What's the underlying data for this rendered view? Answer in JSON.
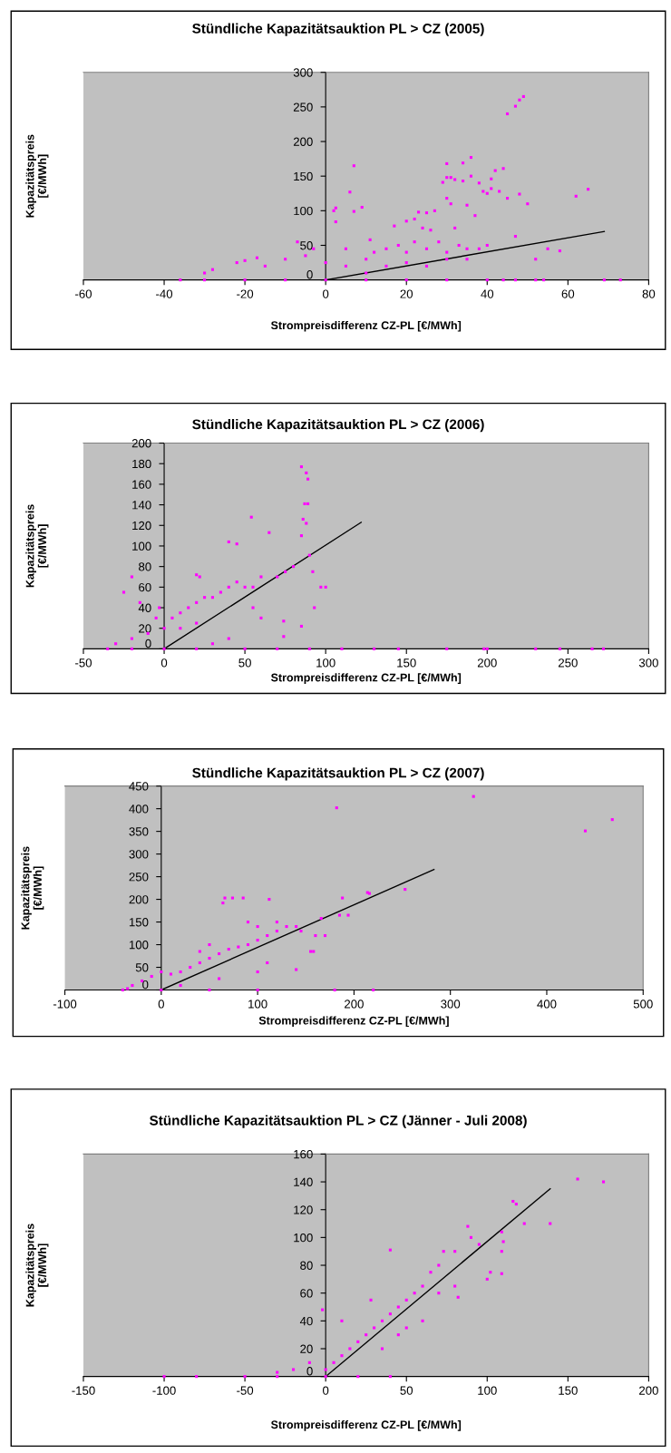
{
  "chart_data": [
    {
      "type": "scatter",
      "title": "Stündliche Kapazitätsauktion PL > CZ (2005)",
      "xlabel": "Strompreisdifferenz CZ-PL [€/MWh]",
      "ylabel": "Kapazitätspreis\n[€/MWh]",
      "xlim": [
        -60,
        80
      ],
      "ylim": [
        0,
        300
      ],
      "xticks": [
        -60,
        -40,
        -20,
        0,
        20,
        40,
        60,
        80
      ],
      "yticks": [
        0,
        50,
        100,
        150,
        200,
        250,
        300
      ],
      "grid": false,
      "series": [
        {
          "marker": "square",
          "color": "#ff00ff",
          "x": [
            2,
            2.5,
            2.5,
            6,
            7,
            7,
            9,
            30,
            29,
            30,
            31,
            32,
            30,
            31,
            34,
            36,
            36,
            34,
            35,
            37,
            38,
            39,
            40,
            41,
            41,
            42,
            43,
            44,
            45,
            47,
            48,
            49,
            45,
            48,
            50,
            62,
            65,
            58,
            55,
            52,
            47,
            32,
            17,
            20,
            22,
            23,
            25,
            27,
            26,
            24,
            5,
            10,
            12,
            15,
            18,
            20,
            22,
            25,
            28,
            30,
            33,
            35,
            38,
            40,
            10,
            15,
            20,
            25,
            30,
            35,
            -10,
            -20,
            -17,
            -22,
            -28,
            -30,
            -15,
            -5,
            -3,
            -7,
            0,
            5,
            11,
            -36,
            -30,
            -20,
            -10,
            0,
            10,
            20,
            30,
            40,
            44,
            47,
            52,
            54,
            69,
            73
          ],
          "values": [
            100,
            104,
            84,
            127,
            165,
            99,
            105,
            168,
            141,
            148,
            148,
            145,
            118,
            110,
            169,
            177,
            150,
            143,
            108,
            93,
            140,
            128,
            125,
            146,
            132,
            158,
            128,
            161,
            240,
            251,
            260,
            265,
            118,
            124,
            110,
            121,
            131,
            42,
            45,
            30,
            63,
            75,
            78,
            85,
            88,
            98,
            97,
            100,
            72,
            75,
            20,
            30,
            40,
            45,
            50,
            40,
            55,
            45,
            55,
            40,
            50,
            45,
            45,
            50,
            10,
            20,
            25,
            20,
            30,
            30,
            30,
            28,
            32,
            25,
            15,
            10,
            20,
            35,
            45,
            55,
            25,
            45,
            58,
            0,
            0,
            0,
            0,
            0,
            0,
            0,
            0,
            0,
            0,
            0,
            0,
            0,
            0,
            0
          ]
        },
        {
          "type": "line",
          "color": "#000000",
          "x": [
            0,
            69
          ],
          "values": [
            0,
            70
          ]
        }
      ]
    },
    {
      "type": "scatter",
      "title": "Stündliche Kapazitätsauktion PL > CZ (2006)",
      "xlabel": "Strompreisdifferenz CZ-PL [€/MWh]",
      "ylabel": "Kapazitätspreis\n[€/MWh]",
      "xlim": [
        -50,
        300
      ],
      "ylim": [
        0,
        200
      ],
      "xticks": [
        -50,
        0,
        50,
        100,
        150,
        200,
        250,
        300
      ],
      "yticks": [
        0,
        20,
        40,
        60,
        80,
        100,
        120,
        140,
        160,
        180,
        200
      ],
      "grid": false,
      "series": [
        {
          "marker": "square",
          "color": "#ff00ff",
          "x": [
            -30,
            -20,
            -10,
            -5,
            -3,
            -20,
            -25,
            -15,
            0,
            5,
            10,
            10,
            15,
            20,
            20,
            25,
            30,
            35,
            40,
            45,
            50,
            55,
            60,
            70,
            75,
            80,
            20,
            22,
            40,
            54,
            45,
            65,
            85,
            88,
            89,
            87,
            89,
            86,
            88,
            85,
            90,
            92,
            93,
            100,
            97,
            74,
            74,
            85,
            55,
            60,
            40,
            30,
            -35,
            -20,
            0,
            20,
            50,
            70,
            90,
            110,
            130,
            145,
            175,
            198,
            200,
            230,
            245,
            265,
            272
          ],
          "values": [
            5,
            10,
            15,
            30,
            40,
            70,
            55,
            45,
            20,
            30,
            35,
            20,
            40,
            45,
            25,
            50,
            50,
            55,
            60,
            65,
            60,
            60,
            70,
            70,
            75,
            80,
            72,
            70,
            104,
            128,
            102,
            113,
            177,
            171,
            165,
            141,
            141,
            126,
            122,
            110,
            91,
            75,
            40,
            60,
            60,
            27,
            12,
            22,
            40,
            30,
            10,
            5,
            0,
            0,
            0,
            0,
            0,
            0,
            0,
            0,
            0,
            0,
            0,
            0,
            0,
            0,
            0,
            0,
            0
          ]
        },
        {
          "type": "line",
          "color": "#000000",
          "x": [
            0,
            122
          ],
          "values": [
            0,
            123
          ]
        }
      ]
    },
    {
      "type": "scatter",
      "title": "Stündliche Kapazitätsauktion PL > CZ (2007)",
      "xlabel": "Strompreisdifferenz CZ-PL [€/MWh]",
      "ylabel": "Kapazitätspreis\n[€/MWh]",
      "xlim": [
        -100,
        500
      ],
      "ylim": [
        0,
        450
      ],
      "xticks": [
        -100,
        0,
        100,
        200,
        300,
        400,
        500
      ],
      "yticks": [
        0,
        50,
        100,
        150,
        200,
        250,
        300,
        350,
        400,
        450
      ],
      "grid": false,
      "series": [
        {
          "marker": "square",
          "color": "#ff00ff",
          "x": [
            324,
            182,
            440,
            468,
            253,
            216,
            214,
            188,
            166,
            194,
            185,
            66,
            74,
            85,
            112,
            64,
            -20,
            -10,
            0,
            10,
            20,
            30,
            40,
            50,
            60,
            70,
            80,
            90,
            50,
            40,
            100,
            110,
            120,
            130,
            140,
            145,
            160,
            170,
            155,
            158,
            140,
            100,
            110,
            60,
            20,
            -30,
            -35,
            90,
            100,
            120,
            -40,
            0,
            50,
            100,
            180,
            220
          ],
          "values": [
            427,
            402,
            351,
            376,
            222,
            213,
            215,
            203,
            158,
            165,
            165,
            203,
            203,
            203,
            200,
            192,
            20,
            30,
            40,
            35,
            40,
            50,
            60,
            70,
            80,
            90,
            95,
            100,
            100,
            85,
            110,
            120,
            130,
            140,
            140,
            130,
            120,
            120,
            85,
            85,
            45,
            40,
            60,
            25,
            10,
            10,
            3,
            150,
            140,
            150,
            0,
            0,
            0,
            0,
            0,
            0
          ]
        },
        {
          "type": "line",
          "color": "#000000",
          "x": [
            0,
            283
          ],
          "values": [
            0,
            266
          ]
        }
      ]
    },
    {
      "type": "scatter",
      "title": "Stündliche Kapazitätsauktion PL > CZ (Jänner - Juli 2008)",
      "xlabel": "Strompreisdifferenz CZ-PL [€/MWh]",
      "ylabel": "Kapazitätspreis\n[€/MWh]",
      "xlim": [
        -150,
        200
      ],
      "ylim": [
        0,
        160
      ],
      "xticks": [
        -150,
        -100,
        -50,
        0,
        50,
        100,
        150,
        200
      ],
      "yticks": [
        0,
        20,
        40,
        60,
        80,
        100,
        120,
        140,
        160
      ],
      "grid": false,
      "series": [
        {
          "marker": "square",
          "color": "#ff00ff",
          "x": [
            156,
            172,
            139,
            123,
            116,
            118,
            109,
            110,
            109,
            109,
            102,
            100,
            88,
            82,
            73,
            90,
            95,
            80,
            70,
            65,
            60,
            55,
            50,
            45,
            40,
            35,
            30,
            25,
            20,
            15,
            10,
            5,
            0,
            -10,
            -20,
            -30,
            -2,
            10,
            40,
            28,
            35,
            45,
            50,
            60,
            70,
            80,
            -100,
            -80,
            -50,
            -30,
            0,
            20,
            40
          ],
          "values": [
            142,
            140,
            110,
            110,
            126,
            124,
            104,
            97,
            90,
            74,
            75,
            70,
            108,
            57,
            90,
            100,
            95,
            90,
            80,
            75,
            65,
            60,
            55,
            50,
            45,
            40,
            35,
            30,
            25,
            20,
            15,
            10,
            5,
            10,
            5,
            3,
            48,
            40,
            91,
            55,
            20,
            30,
            35,
            40,
            60,
            65,
            0,
            0,
            0,
            0,
            0,
            0,
            0
          ]
        },
        {
          "type": "line",
          "color": "#000000",
          "x": [
            0,
            139
          ],
          "values": [
            0,
            135
          ]
        }
      ]
    }
  ]
}
